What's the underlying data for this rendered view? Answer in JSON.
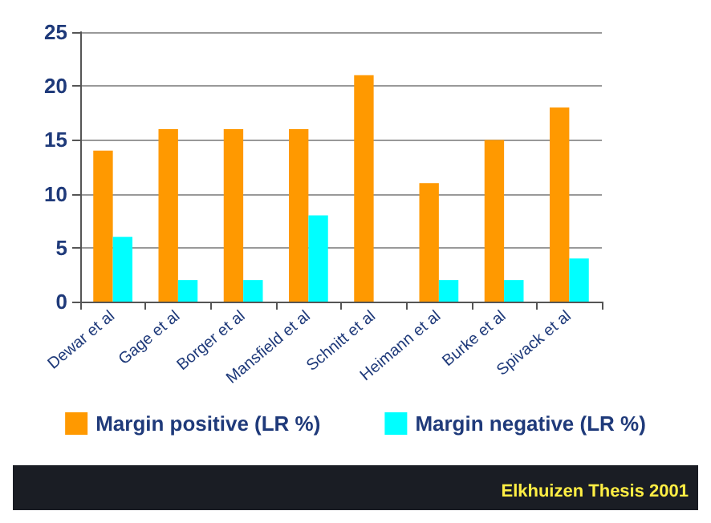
{
  "chart_data": {
    "type": "bar",
    "categories": [
      "Dewar et al",
      "Gage et al",
      "Borger et al",
      "Mansfield et al",
      "Schnitt et al",
      "Heimann et al",
      "Burke et al",
      "Spivack et al"
    ],
    "series": [
      {
        "name": "Margin positive (LR %)",
        "color": "#ff9900",
        "values": [
          14,
          16,
          16,
          16,
          21,
          11,
          15,
          18
        ]
      },
      {
        "name": "Margin negative (LR %)",
        "color": "#00ffff",
        "values": [
          6,
          2,
          2,
          8,
          0,
          2,
          2,
          4
        ]
      }
    ],
    "ylim": [
      0,
      25
    ],
    "yticks": [
      0,
      5,
      10,
      15,
      20,
      25
    ],
    "grid": "y",
    "legend": "bottom",
    "annotations": [
      "Elkhuizen Thesis 2001"
    ]
  }
}
